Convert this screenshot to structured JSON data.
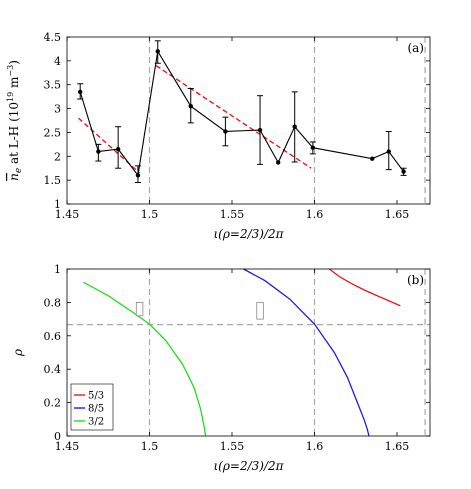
{
  "chart_data": [
    {
      "type": "line",
      "panel_label": "(a)",
      "xlabel": "ι(ρ=2/3)/2π",
      "ylabel": "n̅e at L-H (10^19 m^-3)",
      "ylabel_parts": {
        "main": "n",
        "sub": "e",
        "mid": " at L-H (10",
        "exp1": "19",
        "mid2": " m",
        "exp2": "−3",
        "end": ")"
      },
      "xlim": [
        1.45,
        1.67
      ],
      "ylim": [
        1,
        4.5
      ],
      "xticks": [
        1.45,
        1.5,
        1.55,
        1.6,
        1.65
      ],
      "xtick_labels": [
        "1.45",
        "1.5",
        "1.55",
        "1.6",
        "1.65"
      ],
      "yticks": [
        1,
        1.5,
        2,
        2.5,
        3,
        3.5,
        4,
        4.5
      ],
      "ytick_labels": [
        "1",
        "1.5",
        "2",
        "2.5",
        "3",
        "3.5",
        "4",
        "4.5"
      ],
      "vlines": [
        1.5,
        1.6,
        1.667
      ],
      "series": [
        {
          "style": "black line with markers and error bars",
          "color": "#000000",
          "x": [
            1.458,
            1.469,
            1.481,
            1.493,
            1.505,
            1.525,
            1.546,
            1.567,
            1.578,
            1.588,
            1.599,
            1.635,
            1.645,
            1.654
          ],
          "y": [
            3.35,
            2.1,
            2.15,
            1.6,
            4.2,
            3.05,
            2.52,
            2.55,
            1.87,
            2.62,
            2.18,
            1.95,
            2.1,
            1.68
          ],
          "err_low": [
            3.2,
            1.9,
            1.75,
            1.45,
            3.95,
            2.7,
            2.22,
            1.83,
            1.87,
            1.88,
            2.05,
            1.95,
            1.72,
            1.6
          ],
          "err_high": [
            3.52,
            2.25,
            2.62,
            1.8,
            4.42,
            3.42,
            2.82,
            3.27,
            1.87,
            3.35,
            2.3,
            1.95,
            2.52,
            1.75
          ]
        },
        {
          "style": "red dashed fit",
          "color": "#e41a1c",
          "segments": [
            {
              "x": [
                1.457,
                1.494
              ],
              "y": [
                2.8,
                1.65
              ]
            },
            {
              "x": [
                1.504,
                1.598
              ],
              "y": [
                3.9,
                1.75
              ]
            }
          ]
        }
      ]
    },
    {
      "type": "line",
      "panel_label": "(b)",
      "xlabel": "ι(ρ=2/3)/2π",
      "ylabel": "ρ",
      "xlim": [
        1.45,
        1.67
      ],
      "ylim": [
        0,
        1
      ],
      "xticks": [
        1.45,
        1.5,
        1.55,
        1.6,
        1.65
      ],
      "xtick_labels": [
        "1.45",
        "1.5",
        "1.55",
        "1.6",
        "1.65"
      ],
      "yticks": [
        0,
        0.2,
        0.4,
        0.6,
        0.8,
        1
      ],
      "ytick_labels": [
        "0",
        "0.2",
        "0.4",
        "0.6",
        "0.8",
        "1"
      ],
      "vlines": [
        1.5,
        1.6,
        1.667
      ],
      "hlines": [
        0.667
      ],
      "legend": {
        "placement": "bottom-left"
      },
      "series": [
        {
          "name": "5/3",
          "color": "#e41a1c",
          "x": [
            1.609,
            1.615,
            1.622,
            1.63,
            1.638,
            1.645,
            1.652
          ],
          "y": [
            1.0,
            0.955,
            0.915,
            0.875,
            0.84,
            0.81,
            0.78
          ]
        },
        {
          "name": "8/5",
          "color": "#1f1fd0",
          "x": [
            1.557,
            1.57,
            1.585,
            1.6,
            1.612,
            1.62,
            1.626,
            1.63,
            1.632,
            1.633
          ],
          "y": [
            1.0,
            0.93,
            0.82,
            0.67,
            0.5,
            0.35,
            0.2,
            0.1,
            0.04,
            0.0
          ]
        },
        {
          "name": "3/2",
          "color": "#22dd22",
          "x": [
            1.46,
            1.475,
            1.49,
            1.5,
            1.51,
            1.52,
            1.527,
            1.531,
            1.533,
            1.534
          ],
          "y": [
            0.92,
            0.84,
            0.74,
            0.67,
            0.57,
            0.43,
            0.29,
            0.16,
            0.06,
            0.0
          ]
        }
      ],
      "boxes": [
        {
          "x": [
            1.492,
            1.496
          ],
          "y": [
            0.72,
            0.8
          ]
        },
        {
          "x": [
            1.565,
            1.569
          ],
          "y": [
            0.7,
            0.8
          ]
        }
      ]
    }
  ]
}
